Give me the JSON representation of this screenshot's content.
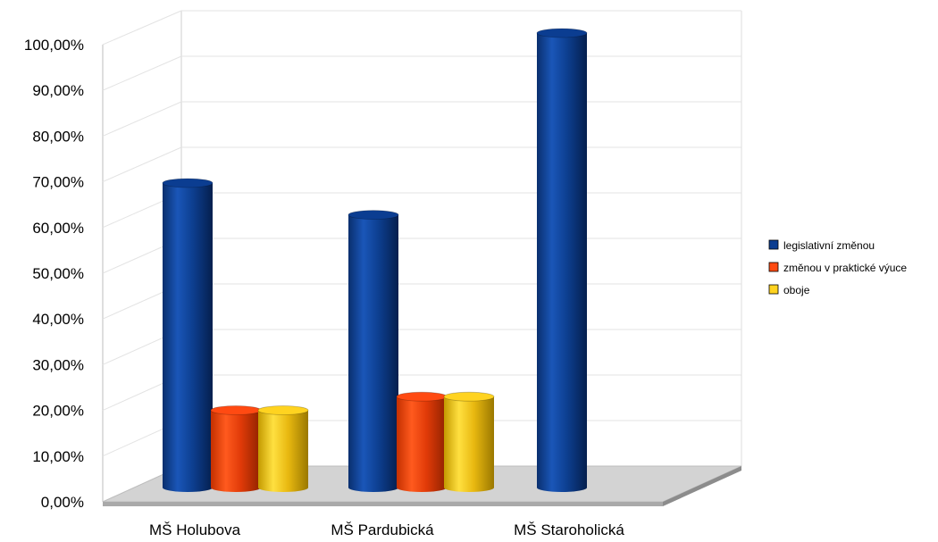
{
  "chart_data": {
    "type": "bar",
    "title": "",
    "xlabel": "",
    "ylabel": "",
    "categories": [
      "MŠ Holubova",
      "MŠ Pardubická",
      "MŠ Staroholická"
    ],
    "series": [
      {
        "name": "legislativní změnou",
        "values": [
          67,
          60,
          100
        ],
        "color": "#0B3D91"
      },
      {
        "name": "změnou v praktické výuce",
        "values": [
          17,
          20,
          null
        ],
        "color": "#FF4A12"
      },
      {
        "name": "oboje",
        "values": [
          17,
          20,
          null
        ],
        "color": "#FFD320"
      }
    ],
    "ylim": [
      0,
      100
    ],
    "yticks": [
      "0,00%",
      "10,00%",
      "20,00%",
      "30,00%",
      "40,00%",
      "50,00%",
      "60,00%",
      "70,00%",
      "80,00%",
      "90,00%",
      "100,00%"
    ],
    "grid": true,
    "legend_position": "right",
    "style": "3d-cylinder"
  }
}
